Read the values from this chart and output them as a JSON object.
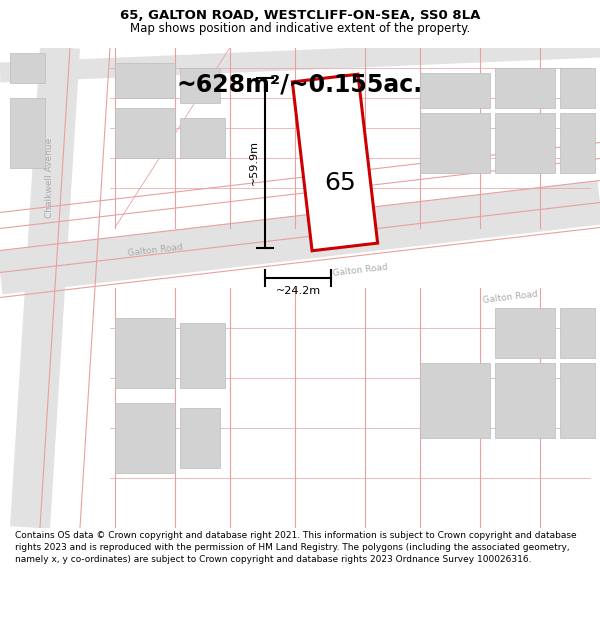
{
  "title": "65, GALTON ROAD, WESTCLIFF-ON-SEA, SS0 8LA",
  "subtitle": "Map shows position and indicative extent of the property.",
  "area_label": "~628m²/~0.155ac.",
  "width_label": "~24.2m",
  "height_label": "~59.9m",
  "number_label": "65",
  "footer": "Contains OS data © Crown copyright and database right 2021. This information is subject to Crown copyright and database rights 2023 and is reproduced with the permission of HM Land Registry. The polygons (including the associated geometry, namely x, y co-ordinates) are subject to Crown copyright and database rights 2023 Ordnance Survey 100026316.",
  "bg_color": "#ffffff",
  "map_bg": "#f7f7f7",
  "road_fill": "#e2e2e2",
  "block_fill": "#d2d2d2",
  "block_edge": "#bbbbbb",
  "red_stroke": "#cc0000",
  "pink_line": "#e8a0a0",
  "road_label_color": "#aaaaaa",
  "chalkwell_label": "Chalkwell Avenue",
  "galton_labels": [
    "Galton Road",
    "Galton Road",
    "Galton Road"
  ],
  "title_fontsize": 9.5,
  "subtitle_fontsize": 8.5,
  "footer_fontsize": 6.5,
  "area_fontsize": 17,
  "number_fontsize": 18,
  "dim_fontsize": 8,
  "road_label_fontsize": 6.5
}
